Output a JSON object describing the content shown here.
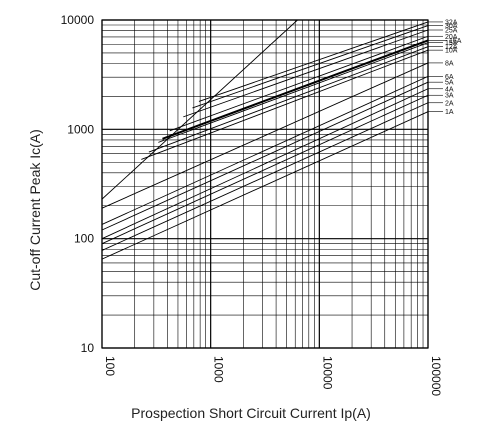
{
  "chart_data": {
    "type": "line",
    "title": "",
    "xlabel": "Prospection Short Circuit Current Ip(A)",
    "ylabel": "Cut-off Current Peak Ic(A)",
    "x_scale": "log",
    "y_scale": "log",
    "xlim": [
      100,
      100000
    ],
    "ylim": [
      10,
      10000
    ],
    "x_ticks": [
      "100",
      "1000",
      "10000",
      "100000"
    ],
    "y_ticks": [
      "10",
      "100",
      "1000",
      "10000"
    ],
    "grid": true,
    "reference_line": {
      "x": [
        100,
        6300
      ],
      "y": [
        230,
        10000
      ]
    },
    "series": [
      {
        "name": "1A",
        "x": [
          100,
          100000
        ],
        "y": [
          65,
          1450
        ]
      },
      {
        "name": "2A",
        "x": [
          100,
          100000
        ],
        "y": [
          78,
          1750
        ]
      },
      {
        "name": "3A",
        "x": [
          100,
          100000
        ],
        "y": [
          90,
          2050
        ]
      },
      {
        "name": "4A",
        "x": [
          100,
          100000
        ],
        "y": [
          100,
          2350
        ]
      },
      {
        "name": "5A",
        "x": [
          100,
          100000
        ],
        "y": [
          120,
          2700
        ]
      },
      {
        "name": "6A",
        "x": [
          100,
          100000
        ],
        "y": [
          135,
          3050
        ]
      },
      {
        "name": "8A",
        "x": [
          100,
          100000
        ],
        "y": [
          190,
          4050
        ]
      },
      {
        "name": "10A",
        "x": [
          230,
          100000
        ],
        "y": [
          530,
          5300
        ]
      },
      {
        "name": "12A",
        "x": [
          270,
          100000
        ],
        "y": [
          620,
          5700
        ]
      },
      {
        "name": "15A",
        "x": [
          330,
          100000
        ],
        "y": [
          760,
          6200
        ]
      },
      {
        "name": "16A",
        "x": [
          360,
          100000
        ],
        "y": [
          820,
          6500
        ]
      },
      {
        "name": "20A",
        "x": [
          420,
          100000
        ],
        "y": [
          970,
          7100
        ]
      },
      {
        "name": "25A",
        "x": [
          560,
          100000
        ],
        "y": [
          1300,
          8100
        ]
      },
      {
        "name": "30A",
        "x": [
          680,
          100000
        ],
        "y": [
          1570,
          8900
        ]
      },
      {
        "name": "32A",
        "x": [
          780,
          100000
        ],
        "y": [
          1800,
          9600
        ]
      }
    ],
    "bold_series": [
      "16A"
    ]
  }
}
